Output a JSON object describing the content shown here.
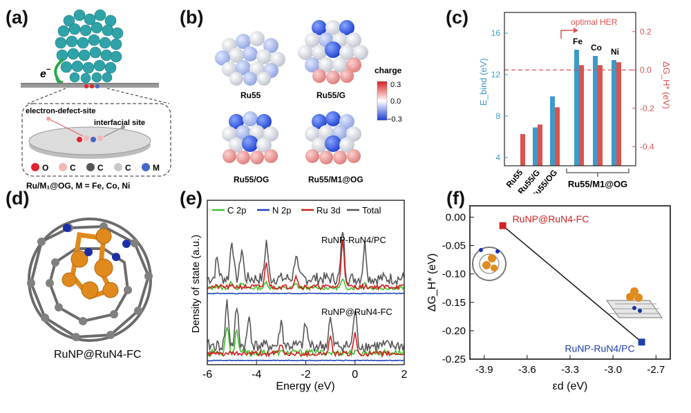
{
  "panels": {
    "a": {
      "label": "(a)",
      "electron_label": "e",
      "electron_sup": "−",
      "electron_defect_site": "electron-defect-site",
      "interfacial_site": "interfacial site",
      "legend": [
        "O",
        "C",
        "C",
        "C",
        "M"
      ],
      "legend_colors": [
        "#e0232e",
        "#f4b6b6",
        "#555555",
        "#c8c8c8",
        "#4468c8"
      ],
      "caption": "Ru/M₁@OG, M = Fe, Co, Ni"
    },
    "b": {
      "label": "(b)",
      "cluster_labels": [
        "Ru55",
        "Ru55/G",
        "Ru55/OG",
        "Ru55/M1@OG"
      ],
      "colorbar_title": "charge",
      "colorbar_ticks": [
        "0.3",
        "0.0",
        "−0.3"
      ]
    },
    "c": {
      "label": "(c)",
      "optimal_text": "optimal HER"
    },
    "d": {
      "label": "(d)",
      "caption": "RuNP@RuN4-FC"
    },
    "e": {
      "label": "(e)"
    },
    "f": {
      "label": "(f)"
    }
  },
  "chart_data": [
    {
      "panel": "c",
      "type": "bar",
      "categories": [
        "Ru55",
        "Ru55/G",
        "Ru55/OG",
        "Fe",
        "Co",
        "Ni"
      ],
      "category_labels": [
        "Ru55",
        "Ru55/G",
        "Ru55/OG"
      ],
      "group_label": "Ru55/M1@OG",
      "metal_labels": [
        "Fe",
        "Co",
        "Ni"
      ],
      "series": [
        {
          "name": "E_bind",
          "axis": "left",
          "color": "#3d9ac9",
          "values": [
            null,
            6.9,
            9.9,
            14.4,
            13.8,
            13.4
          ]
        },
        {
          "name": "ΔG_H*",
          "axis": "right",
          "color": "#d9534f",
          "values": [
            -0.335,
            -0.285,
            -0.195,
            0.025,
            0.025,
            0.04
          ]
        }
      ],
      "ylabel_left": "E_bind (eV)",
      "ylabel_right": "ΔG_H* (eV)",
      "ylim_left": [
        3.2,
        18
      ],
      "ylim_right": [
        -0.5,
        0.3
      ],
      "yticks_left": [
        "4",
        "8",
        "12",
        "16"
      ],
      "yticks_right": [
        "-0.4",
        "-0.2",
        "0.0",
        "0.2"
      ],
      "reference_line_right": 0.0
    },
    {
      "panel": "e",
      "type": "line",
      "xlabel": "Energy (eV)",
      "ylabel": "Density of state (a.u.)",
      "xlim": [
        -6,
        2
      ],
      "xticks": [
        "-6",
        "-4",
        "-2",
        "0",
        "2"
      ],
      "legend": [
        {
          "name": "C 2p",
          "color": "#3fbf2f"
        },
        {
          "name": "N 2p",
          "color": "#1f3fbf"
        },
        {
          "name": "Ru 3d",
          "color": "#d21d1d"
        },
        {
          "name": "Total",
          "color": "#555555"
        }
      ],
      "upper_label": "RuNP-RuN4/PC",
      "lower_label": "RuNP@RuN4-FC",
      "peaks_total_upper": [
        [
          -5.6,
          0.4
        ],
        [
          -5.0,
          0.8
        ],
        [
          -4.6,
          0.6
        ],
        [
          -3.6,
          0.75
        ],
        [
          -2.4,
          0.5
        ],
        [
          -0.5,
          1.0
        ],
        [
          0.4,
          0.7
        ]
      ],
      "peaks_total_lower": [
        [
          -5.2,
          0.9
        ],
        [
          -4.8,
          0.8
        ],
        [
          -4.3,
          0.6
        ],
        [
          -3.0,
          0.5
        ],
        [
          -2.0,
          0.45
        ],
        [
          -1.0,
          0.55
        ],
        [
          0.0,
          0.75
        ]
      ]
    },
    {
      "panel": "f",
      "type": "scatter",
      "xlabel": "εd (eV)",
      "ylabel": "ΔG_H* (eV)",
      "xlim": [
        -4.0,
        -2.6
      ],
      "ylim": [
        -0.25,
        0.02
      ],
      "xticks": [
        "-3.9",
        "-3.6",
        "-3.3",
        "-3.0",
        "-2.7"
      ],
      "yticks": [
        "0.00",
        "-0.05",
        "-0.10",
        "-0.15",
        "-0.20",
        "-0.25"
      ],
      "points": [
        {
          "label": "RuNP@RuN4-FC",
          "x": -3.77,
          "y": -0.015,
          "color": "#d42020"
        },
        {
          "label": "RuNP-RuN4/PC",
          "x": -2.8,
          "y": -0.22,
          "color": "#1f3fae"
        }
      ]
    }
  ]
}
